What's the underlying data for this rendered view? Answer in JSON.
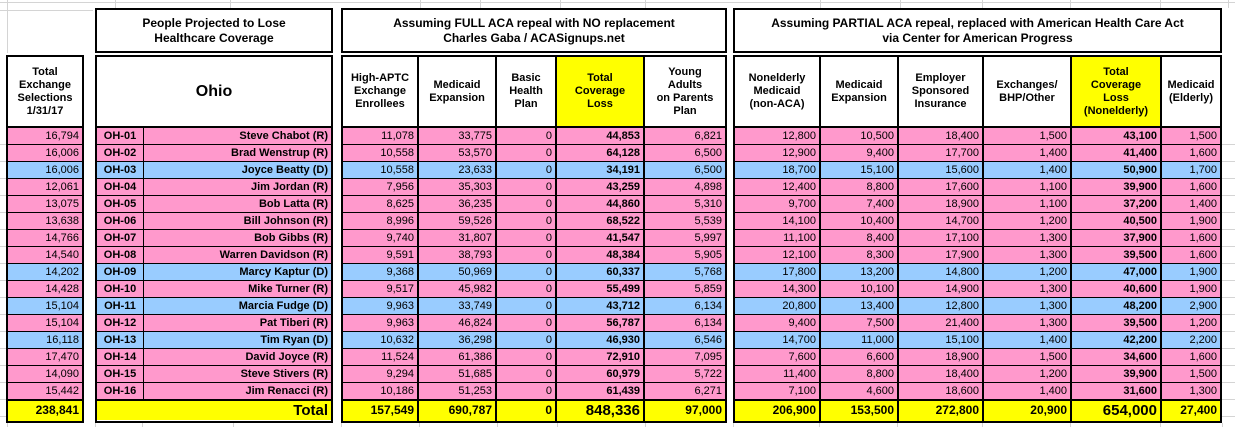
{
  "colors": {
    "republican_row": "#FF99CC",
    "democrat_row": "#99CCFF",
    "highlight": "#FFFF00",
    "border": "#000000",
    "grid_line": "#D4D4D4"
  },
  "left_column": {
    "header": "Total\nExchange\nSelections\n1/31/17"
  },
  "state_block": {
    "section_title": "People Projected to Lose\nHealthcare Coverage",
    "state_name": "Ohio"
  },
  "full_repeal_block": {
    "section_title": "Assuming FULL ACA repeal with NO replacement\nCharles Gaba / ACASignups.net",
    "columns": [
      "High-APTC\nExchange\nEnrollees",
      "Medicaid\nExpansion",
      "Basic\nHealth\nPlan",
      "Total\nCoverage\nLoss",
      "Young\nAdults\non Parents\nPlan"
    ]
  },
  "partial_repeal_block": {
    "section_title": "Assuming PARTIAL ACA repeal, replaced with American Health Care Act\nvia Center for American Progress",
    "columns": [
      "Nonelderly\nMedicaid\n(non-ACA)",
      "Medicaid\nExpansion",
      "Employer\nSponsored\nInsurance",
      "Exchanges/\nBHP/Other",
      "Total\nCoverage\nLoss\n(Nonelderly)",
      "Medicaid\n(Elderly)"
    ]
  },
  "rows": [
    {
      "code": "OH-01",
      "rep": "Steve Chabot (R)",
      "party": "R",
      "exchange": "16,794",
      "full": [
        "11,078",
        "33,775",
        "0",
        "44,853",
        "6,821"
      ],
      "partial": [
        "12,800",
        "10,500",
        "18,400",
        "1,500",
        "43,100",
        "1,500"
      ]
    },
    {
      "code": "OH-02",
      "rep": "Brad Wenstrup (R)",
      "party": "R",
      "exchange": "16,006",
      "full": [
        "10,558",
        "53,570",
        "0",
        "64,128",
        "6,500"
      ],
      "partial": [
        "12,900",
        "9,400",
        "17,700",
        "1,400",
        "41,400",
        "1,600"
      ]
    },
    {
      "code": "OH-03",
      "rep": "Joyce Beatty (D)",
      "party": "D",
      "exchange": "16,006",
      "full": [
        "10,558",
        "23,633",
        "0",
        "34,191",
        "6,500"
      ],
      "partial": [
        "18,700",
        "15,100",
        "15,600",
        "1,400",
        "50,900",
        "1,700"
      ]
    },
    {
      "code": "OH-04",
      "rep": "Jim Jordan (R)",
      "party": "R",
      "exchange": "12,061",
      "full": [
        "7,956",
        "35,303",
        "0",
        "43,259",
        "4,898"
      ],
      "partial": [
        "12,400",
        "8,800",
        "17,600",
        "1,100",
        "39,900",
        "1,600"
      ]
    },
    {
      "code": "OH-05",
      "rep": "Bob Latta (R)",
      "party": "R",
      "exchange": "13,075",
      "full": [
        "8,625",
        "36,235",
        "0",
        "44,860",
        "5,310"
      ],
      "partial": [
        "9,700",
        "7,400",
        "18,900",
        "1,100",
        "37,200",
        "1,400"
      ]
    },
    {
      "code": "OH-06",
      "rep": "Bill Johnson (R)",
      "party": "R",
      "exchange": "13,638",
      "full": [
        "8,996",
        "59,526",
        "0",
        "68,522",
        "5,539"
      ],
      "partial": [
        "14,100",
        "10,400",
        "14,700",
        "1,200",
        "40,500",
        "1,900"
      ]
    },
    {
      "code": "OH-07",
      "rep": "Bob Gibbs (R)",
      "party": "R",
      "exchange": "14,766",
      "full": [
        "9,740",
        "31,807",
        "0",
        "41,547",
        "5,997"
      ],
      "partial": [
        "11,100",
        "8,400",
        "17,100",
        "1,300",
        "37,900",
        "1,600"
      ]
    },
    {
      "code": "OH-08",
      "rep": "Warren Davidson (R)",
      "party": "R",
      "exchange": "14,540",
      "full": [
        "9,591",
        "38,793",
        "0",
        "48,384",
        "5,905"
      ],
      "partial": [
        "12,100",
        "8,300",
        "17,900",
        "1,300",
        "39,500",
        "1,600"
      ]
    },
    {
      "code": "OH-09",
      "rep": "Marcy Kaptur (D)",
      "party": "D",
      "exchange": "14,202",
      "full": [
        "9,368",
        "50,969",
        "0",
        "60,337",
        "5,768"
      ],
      "partial": [
        "17,800",
        "13,200",
        "14,800",
        "1,200",
        "47,000",
        "1,900"
      ]
    },
    {
      "code": "OH-10",
      "rep": "Mike Turner (R)",
      "party": "R",
      "exchange": "14,428",
      "full": [
        "9,517",
        "45,982",
        "0",
        "55,499",
        "5,859"
      ],
      "partial": [
        "14,300",
        "10,100",
        "14,900",
        "1,300",
        "40,600",
        "1,900"
      ]
    },
    {
      "code": "OH-11",
      "rep": "Marcia Fudge (D)",
      "party": "D",
      "exchange": "15,104",
      "full": [
        "9,963",
        "33,749",
        "0",
        "43,712",
        "6,134"
      ],
      "partial": [
        "20,800",
        "13,400",
        "12,800",
        "1,300",
        "48,200",
        "2,900"
      ]
    },
    {
      "code": "OH-12",
      "rep": "Pat Tiberi (R)",
      "party": "R",
      "exchange": "15,104",
      "full": [
        "9,963",
        "46,824",
        "0",
        "56,787",
        "6,134"
      ],
      "partial": [
        "9,400",
        "7,500",
        "21,400",
        "1,300",
        "39,500",
        "1,200"
      ]
    },
    {
      "code": "OH-13",
      "rep": "Tim Ryan (D)",
      "party": "D",
      "exchange": "16,118",
      "full": [
        "10,632",
        "36,298",
        "0",
        "46,930",
        "6,546"
      ],
      "partial": [
        "14,700",
        "11,000",
        "15,100",
        "1,400",
        "42,200",
        "2,200"
      ]
    },
    {
      "code": "OH-14",
      "rep": "David Joyce (R)",
      "party": "R",
      "exchange": "17,470",
      "full": [
        "11,524",
        "61,386",
        "0",
        "72,910",
        "7,095"
      ],
      "partial": [
        "7,600",
        "6,600",
        "18,900",
        "1,500",
        "34,600",
        "1,600"
      ]
    },
    {
      "code": "OH-15",
      "rep": "Steve Stivers (R)",
      "party": "R",
      "exchange": "14,090",
      "full": [
        "9,294",
        "51,685",
        "0",
        "60,979",
        "5,722"
      ],
      "partial": [
        "11,400",
        "8,800",
        "18,400",
        "1,200",
        "39,900",
        "1,500"
      ]
    },
    {
      "code": "OH-16",
      "rep": "Jim Renacci (R)",
      "party": "R",
      "exchange": "15,442",
      "full": [
        "10,186",
        "51,253",
        "0",
        "61,439",
        "6,271"
      ],
      "partial": [
        "7,100",
        "4,600",
        "18,600",
        "1,400",
        "31,600",
        "1,300"
      ]
    }
  ],
  "totals": {
    "exchange": "238,841",
    "label": "Total",
    "full": [
      "157,549",
      "690,787",
      "0",
      "848,336",
      "97,000"
    ],
    "partial": [
      "206,900",
      "153,500",
      "272,800",
      "20,900",
      "654,000",
      "27,400"
    ]
  }
}
